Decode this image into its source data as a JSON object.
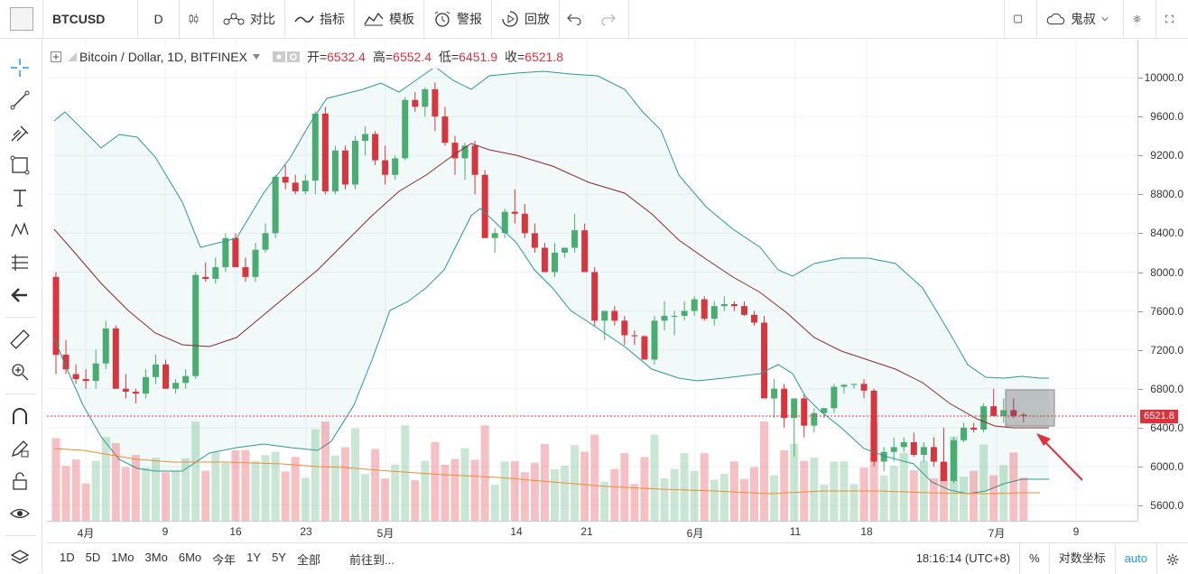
{
  "toolbar": {
    "symbol": "BTCUSD",
    "interval": "D",
    "compare_label": "对比",
    "indicators_label": "指标",
    "templates_label": "模板",
    "alert_label": "警报",
    "replay_label": "回放",
    "user_label": "鬼叔"
  },
  "legend": {
    "title": "Bitcoin / Dollar, 1D, BITFINEX",
    "open_label": "开=",
    "open_value": "6532.4",
    "high_label": "高=",
    "high_value": "6552.4",
    "low_label": "低=",
    "low_value": "6451.9",
    "close_label": "收=",
    "close_value": "6521.8"
  },
  "price_axis": [
    "10000.0",
    "9600.0",
    "9200.0",
    "8800.0",
    "8400.0",
    "8000.0",
    "7600.0",
    "7200.0",
    "6800.0",
    "6400.0",
    "6000.0",
    "5600.0"
  ],
  "last_price": "6521.8",
  "time_axis": [
    "4月",
    "9",
    "16",
    "23",
    "5月",
    "14",
    "21",
    "6月",
    "11",
    "18",
    "7月",
    "9"
  ],
  "bottom": {
    "ranges": [
      "1D",
      "5D",
      "1Mo",
      "3Mo",
      "6Mo",
      "今年",
      "1Y",
      "5Y",
      "全部"
    ],
    "goto": "前往到...",
    "time": "18:16:14 (UTC+8)",
    "percent": "%",
    "log": "对数坐标",
    "auto": "auto"
  },
  "colors": {
    "up": "#4caf70",
    "down": "#e0313b",
    "band": "#2a9a94",
    "mid": "#8b2a2a",
    "vol_ma": "#f08c2e"
  }
}
